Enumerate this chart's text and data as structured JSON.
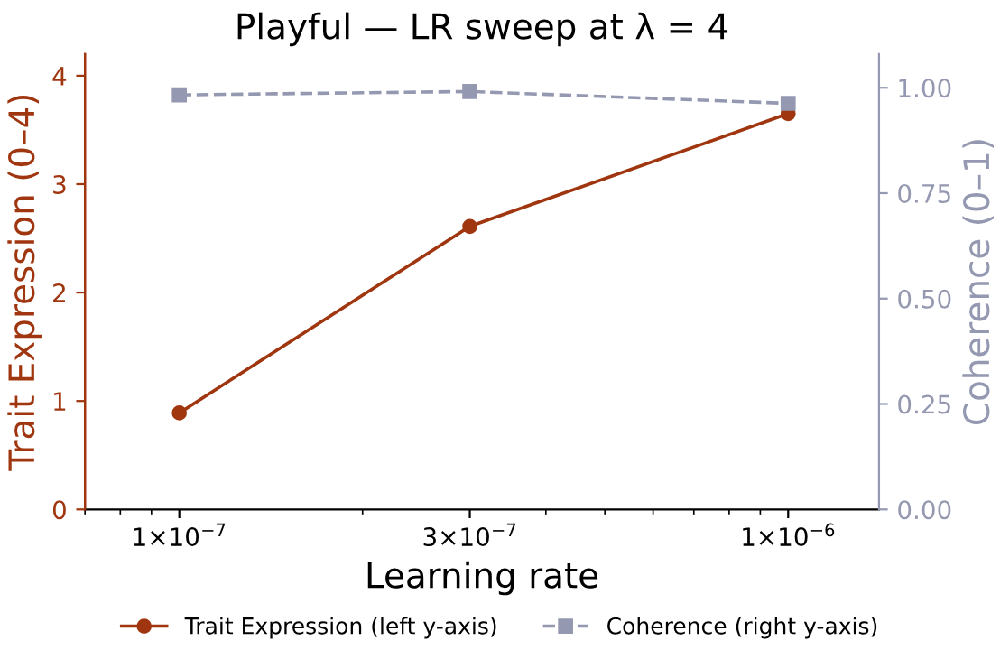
{
  "chart_data": {
    "type": "line",
    "title": "Playful — LR sweep at λ = 4",
    "xlabel": "Learning rate",
    "ylabel": "Trait Expression (0–4)",
    "y2label": "Coherence (0–1)",
    "x": [
      1e-07,
      3e-07,
      1e-06
    ],
    "log": "x",
    "xlim": [
      7e-08,
      1.41e-06
    ],
    "xticks": [
      {
        "value": 1e-07,
        "label": "1×10$^{−7}$"
      },
      {
        "value": 3e-07,
        "label": "3×10$^{−7}$"
      },
      {
        "value": 1e-06,
        "label": "1×10$^{−6}$"
      }
    ],
    "ylim": [
      0,
      4.2
    ],
    "yticks": [
      0,
      1,
      2,
      3,
      4
    ],
    "y2lim": [
      0,
      1.08
    ],
    "y2ticks": [
      {
        "value": 0,
        "label": "0.00"
      },
      {
        "value": 0.25,
        "label": "0.25"
      },
      {
        "value": 0.5,
        "label": "0.50"
      },
      {
        "value": 0.75,
        "label": "0.75"
      },
      {
        "value": 1,
        "label": "1.00"
      }
    ],
    "grid": false,
    "legend": "bottom",
    "series": [
      {
        "name": "Trait Expression (left y-axis)",
        "color": "#a0360f",
        "values": [
          0.89,
          2.61,
          3.65
        ],
        "marker": "circle",
        "line_style": "solid"
      },
      {
        "name": "Coherence (right y-axis)",
        "color": "#9498b0",
        "values": [
          0.983,
          0.991,
          0.963
        ],
        "marker": "square",
        "line_style": "dashed",
        "axis": "y2"
      }
    ]
  }
}
